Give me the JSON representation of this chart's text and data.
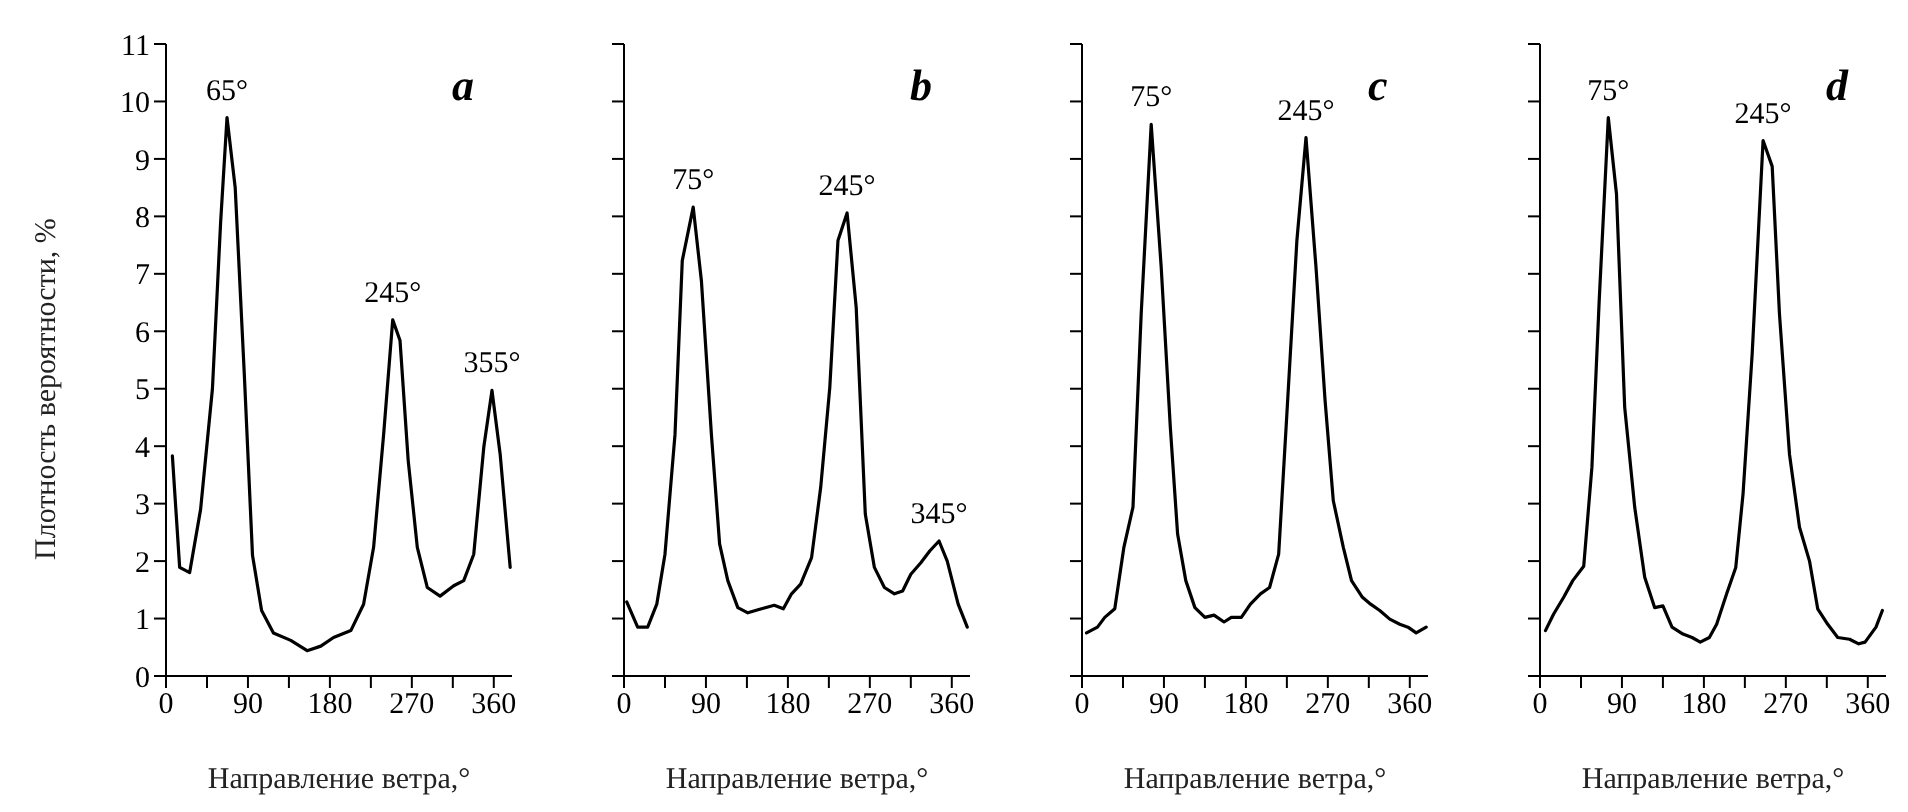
{
  "chart_data": [
    {
      "type": "line",
      "title": "a",
      "xlabel": "Направление ветра,°",
      "ylabel": "Плотность вероятности, %",
      "xlim": [
        0,
        380
      ],
      "ylim": [
        0,
        11
      ],
      "xticks": [
        0,
        {
          "value": 45,
          "label": null
        },
        90,
        {
          "value": 135,
          "label": null
        },
        180,
        {
          "value": 225,
          "label": null
        },
        270,
        {
          "value": 315,
          "label": null
        },
        360
      ],
      "yticks": [
        0,
        1,
        2,
        3,
        4,
        5,
        6,
        7,
        8,
        9,
        10,
        11
      ],
      "annotations": [
        {
          "text": "65°",
          "x": 67,
          "y": 9.72
        },
        {
          "text": "245°",
          "x": 249,
          "y": 6.2
        },
        {
          "text": "355°",
          "x": 358,
          "y": 4.97
        }
      ],
      "series": [
        {
          "color": "#000000",
          "x": [
            7,
            15,
            26,
            38,
            51,
            60,
            67,
            76,
            86,
            95,
            105,
            118,
            137,
            155,
            170,
            184,
            203,
            217,
            228,
            239,
            249,
            257,
            266,
            276,
            287,
            301,
            316,
            327,
            338,
            349,
            358,
            367,
            378
          ],
          "values": [
            3.83,
            1.89,
            1.8,
            2.9,
            5.0,
            7.9,
            9.72,
            8.5,
            5.25,
            2.1,
            1.14,
            0.75,
            0.62,
            0.44,
            0.52,
            0.67,
            0.79,
            1.25,
            2.24,
            4.2,
            6.2,
            5.84,
            3.75,
            2.24,
            1.54,
            1.39,
            1.57,
            1.66,
            2.12,
            3.98,
            4.97,
            3.86,
            1.89
          ]
        }
      ]
    },
    {
      "type": "line",
      "title": "b",
      "xlabel": "Направление ветра,°",
      "xlim": [
        0,
        380
      ],
      "ylim": [
        0,
        11
      ],
      "tick_labels": "x",
      "xticks": [
        0,
        {
          "value": 45,
          "label": null
        },
        90,
        {
          "value": 135,
          "label": null
        },
        180,
        {
          "value": 225,
          "label": null
        },
        270,
        {
          "value": 315,
          "label": null
        },
        360
      ],
      "yticks": [
        0,
        1,
        2,
        3,
        4,
        5,
        6,
        7,
        8,
        9,
        10,
        11
      ],
      "annotations": [
        {
          "text": "75°",
          "x": 76,
          "y": 8.16
        },
        {
          "text": "245°",
          "x": 245,
          "y": 8.06
        },
        {
          "text": "345°",
          "x": 346,
          "y": 2.35
        }
      ],
      "series": [
        {
          "color": "#000000",
          "x": [
            3,
            15,
            26,
            36,
            45,
            56,
            64,
            76,
            85,
            96,
            105,
            114,
            125,
            136,
            151,
            165,
            175,
            184,
            194,
            206,
            216,
            226,
            235,
            245,
            255,
            265,
            275,
            286,
            297,
            306,
            315,
            326,
            336,
            346,
            355,
            367,
            377
          ],
          "values": [
            1.29,
            0.85,
            0.85,
            1.25,
            2.12,
            4.2,
            7.23,
            8.16,
            6.88,
            4.2,
            2.3,
            1.66,
            1.19,
            1.1,
            1.17,
            1.23,
            1.17,
            1.43,
            1.6,
            2.06,
            3.28,
            5.02,
            7.58,
            8.06,
            6.42,
            2.82,
            1.89,
            1.54,
            1.43,
            1.48,
            1.77,
            1.97,
            2.18,
            2.35,
            2.0,
            1.25,
            0.85
          ]
        }
      ]
    },
    {
      "type": "line",
      "title": "c",
      "xlabel": "Направление ветра,°",
      "xlim": [
        0,
        380
      ],
      "ylim": [
        0,
        11
      ],
      "tick_labels": "x",
      "xticks": [
        0,
        {
          "value": 45,
          "label": null
        },
        90,
        {
          "value": 135,
          "label": null
        },
        180,
        {
          "value": 225,
          "label": null
        },
        270,
        {
          "value": 315,
          "label": null
        },
        360
      ],
      "yticks": [
        0,
        1,
        2,
        3,
        4,
        5,
        6,
        7,
        8,
        9,
        10,
        11
      ],
      "annotations": [
        {
          "text": "75°",
          "x": 76,
          "y": 9.6
        },
        {
          "text": "245°",
          "x": 246,
          "y": 9.37
        }
      ],
      "series": [
        {
          "color": "#000000",
          "x": [
            5,
            17,
            25,
            36,
            46,
            56,
            65,
            76,
            87,
            97,
            105,
            114,
            124,
            135,
            145,
            156,
            164,
            175,
            185,
            196,
            206,
            216,
            225,
            236,
            246,
            257,
            267,
            276,
            287,
            296,
            308,
            317,
            327,
            338,
            349,
            358,
            367,
            378
          ],
          "values": [
            0.75,
            0.85,
            1.02,
            1.17,
            2.24,
            2.94,
            6.3,
            9.6,
            7.11,
            4.33,
            2.47,
            1.66,
            1.19,
            1.02,
            1.06,
            0.94,
            1.02,
            1.02,
            1.25,
            1.43,
            1.54,
            2.12,
            4.56,
            7.58,
            9.37,
            7.11,
            4.79,
            3.05,
            2.24,
            1.66,
            1.37,
            1.25,
            1.14,
            0.99,
            0.9,
            0.85,
            0.75,
            0.85
          ]
        }
      ]
    },
    {
      "type": "line",
      "title": "d",
      "xlabel": "Направление ветра,°",
      "xlim": [
        0,
        380
      ],
      "ylim": [
        0,
        11
      ],
      "tick_labels": "x",
      "xticks": [
        0,
        {
          "value": 45,
          "label": null
        },
        90,
        {
          "value": 135,
          "label": null
        },
        180,
        {
          "value": 225,
          "label": null
        },
        270,
        {
          "value": 315,
          "label": null
        },
        360
      ],
      "yticks": [
        0,
        1,
        2,
        3,
        4,
        5,
        6,
        7,
        8,
        9,
        10,
        11
      ],
      "annotations": [
        {
          "text": "75°",
          "x": 75,
          "y": 9.72
        },
        {
          "text": "245°",
          "x": 245,
          "y": 9.32
        }
      ],
      "series": [
        {
          "color": "#000000",
          "x": [
            6,
            15,
            26,
            36,
            48,
            57,
            65,
            75,
            84,
            93,
            104,
            115,
            126,
            135,
            145,
            157,
            167,
            176,
            186,
            194,
            205,
            215,
            223,
            233,
            245,
            255,
            263,
            274,
            285,
            296,
            305,
            316,
            327,
            340,
            350,
            357,
            369,
            376
          ],
          "values": [
            0.79,
            1.08,
            1.37,
            1.66,
            1.91,
            3.63,
            6.53,
            9.72,
            8.39,
            4.68,
            2.94,
            1.72,
            1.19,
            1.22,
            0.85,
            0.73,
            0.67,
            0.59,
            0.67,
            0.9,
            1.43,
            1.89,
            3.17,
            5.6,
            9.32,
            8.87,
            6.3,
            3.86,
            2.59,
            2.0,
            1.17,
            0.9,
            0.67,
            0.64,
            0.56,
            0.59,
            0.85,
            1.14
          ]
        }
      ]
    }
  ]
}
